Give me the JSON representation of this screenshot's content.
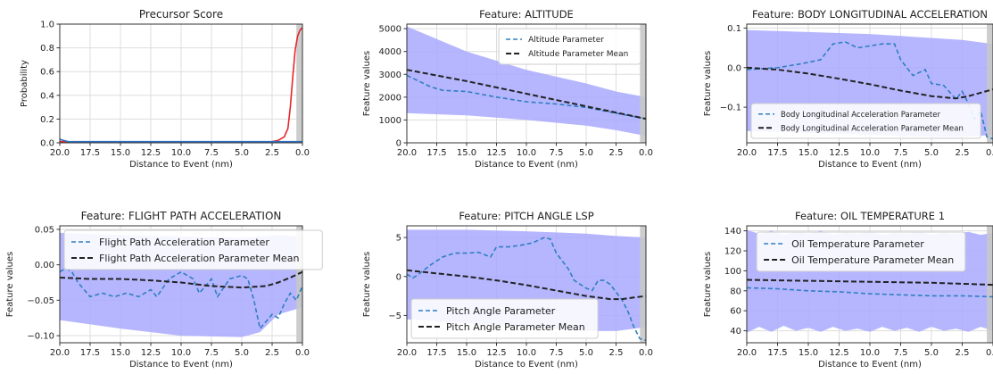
{
  "figure": {
    "xlabel": "Distance to Event (nm)",
    "x_ticks": [
      20.0,
      17.5,
      15.0,
      12.5,
      10.0,
      7.5,
      5.0,
      2.5,
      0.0
    ],
    "x_tick_labels": [
      "20.0",
      "17.5",
      "15.0",
      "12.5",
      "10.0",
      "7.5",
      "5.0",
      "2.5",
      "0.0"
    ],
    "colors": {
      "band": "#a9a9ff",
      "parameter": "#2f7fbf",
      "mean": "#222222",
      "precursor_red": "#e8262a",
      "precursor_blue": "#2f6fbf",
      "shade": "#c8c8c8",
      "grid": "#dddddd"
    }
  },
  "chart_data": [
    {
      "type": "line",
      "title": "Precursor Score",
      "xlabel": "Distance to Event (nm)",
      "ylabel": "Probability",
      "xlim": [
        20.0,
        0.0
      ],
      "ylim": [
        0,
        1.0
      ],
      "y_ticks": [
        0.0,
        0.2,
        0.4,
        0.6,
        0.8,
        1.0
      ],
      "y_tick_labels": [
        "0.0",
        "0.2",
        "0.4",
        "0.6",
        "0.8",
        "1.0"
      ],
      "shaded_x": [
        0.5,
        0.0
      ],
      "grid": true,
      "series": [
        {
          "color": "red",
          "style": "solid",
          "x": [
            20.0,
            15.0,
            10.0,
            5.0,
            3.0,
            2.5,
            2.0,
            1.5,
            1.2,
            1.0,
            0.8,
            0.6,
            0.4,
            0.2,
            0.0
          ],
          "y": [
            0.01,
            0.0,
            0.0,
            0.0,
            0.0,
            0.01,
            0.02,
            0.05,
            0.12,
            0.3,
            0.55,
            0.78,
            0.9,
            0.95,
            0.97
          ]
        },
        {
          "color": "blue",
          "style": "solid",
          "x": [
            20.0,
            19.7,
            19.3,
            15.0,
            10.0,
            5.0,
            2.0,
            0.0
          ],
          "y": [
            0.03,
            0.02,
            0.01,
            0.01,
            0.01,
            0.01,
            0.01,
            0.01
          ]
        }
      ]
    },
    {
      "type": "line",
      "title": "Feature: ALTITUDE",
      "xlabel": "Distance to Event (nm)",
      "ylabel": "Feature values",
      "xlim": [
        20.0,
        0.0
      ],
      "ylim": [
        0,
        5200
      ],
      "y_ticks": [
        0,
        1000,
        2000,
        3000,
        4000,
        5000
      ],
      "y_tick_labels": [
        "0",
        "1000",
        "2000",
        "3000",
        "4000",
        "5000"
      ],
      "shaded_x": [
        0.5,
        0.0
      ],
      "grid": true,
      "legend_position": "upper right",
      "band": {
        "x": [
          20.0,
          15.0,
          10.0,
          5.0,
          2.5,
          0.0
        ],
        "upper": [
          5100,
          4000,
          3200,
          2600,
          2250,
          2000
        ],
        "lower": [
          1300,
          1200,
          1000,
          750,
          550,
          300
        ]
      },
      "series": [
        {
          "name": "Altitude Parameter",
          "color": "parameter",
          "style": "dashed",
          "x": [
            20.0,
            19.0,
            18.0,
            17.0,
            15.0,
            12.5,
            10.0,
            7.5,
            5.0,
            2.5,
            0.0
          ],
          "y": [
            2950,
            2700,
            2450,
            2300,
            2250,
            2000,
            1800,
            1700,
            1550,
            1300,
            1050
          ]
        },
        {
          "name": "Altitude Parameter Mean",
          "color": "mean",
          "style": "dashed",
          "x": [
            20.0,
            15.0,
            10.0,
            5.0,
            0.0
          ],
          "y": [
            3200,
            2700,
            2150,
            1600,
            1050
          ]
        }
      ]
    },
    {
      "type": "line",
      "title": "Feature: BODY LONGITUDINAL ACCELERATION",
      "xlabel": "Distance to Event (nm)",
      "ylabel": "Feature values",
      "xlim": [
        20.0,
        0.0
      ],
      "ylim": [
        -0.19,
        0.11
      ],
      "y_ticks": [
        -0.1,
        0.0,
        0.1
      ],
      "y_tick_labels": [
        "−0.1",
        "0.0",
        "0.1"
      ],
      "shaded_x": [
        0.5,
        0.0
      ],
      "grid": true,
      "legend_position": "lower left",
      "band": {
        "x": [
          20.0,
          15.0,
          10.0,
          5.0,
          2.5,
          0.0
        ],
        "upper": [
          0.095,
          0.09,
          0.085,
          0.075,
          0.07,
          0.06
        ],
        "lower": [
          -0.16,
          -0.165,
          -0.17,
          -0.175,
          -0.175,
          -0.17
        ]
      },
      "series": [
        {
          "name": "Body Longitudinal Acceleration Parameter",
          "color": "parameter",
          "style": "dashed",
          "x": [
            20.0,
            17.5,
            15.5,
            14.0,
            13.0,
            12.0,
            11.0,
            10.0,
            9.0,
            8.0,
            7.5,
            6.5,
            5.5,
            5.0,
            4.0,
            3.0,
            2.5,
            2.0,
            1.5,
            1.0,
            0.5,
            0.0
          ],
          "y": [
            -0.005,
            0.0,
            0.01,
            0.02,
            0.06,
            0.065,
            0.05,
            0.055,
            0.06,
            0.06,
            0.02,
            -0.02,
            -0.005,
            -0.04,
            -0.045,
            -0.08,
            -0.06,
            -0.09,
            -0.13,
            -0.11,
            -0.175,
            -0.18
          ]
        },
        {
          "name": "Body Longitudinal Acceleration Parameter Mean",
          "color": "mean",
          "style": "dashed",
          "x": [
            20.0,
            17.5,
            15.0,
            12.5,
            10.0,
            7.5,
            5.0,
            3.0,
            2.0,
            0.0
          ],
          "y": [
            0.0,
            -0.005,
            -0.015,
            -0.028,
            -0.042,
            -0.058,
            -0.072,
            -0.078,
            -0.072,
            -0.055
          ]
        }
      ]
    },
    {
      "type": "line",
      "title": "Feature: FLIGHT PATH ACCELERATION",
      "xlabel": "Distance to Event (nm)",
      "ylabel": "Feature values",
      "xlim": [
        20.0,
        0.0
      ],
      "ylim": [
        -0.11,
        0.055
      ],
      "y_ticks": [
        -0.1,
        -0.05,
        0.0,
        0.05
      ],
      "y_tick_labels": [
        "−0.10",
        "−0.05",
        "0.00",
        "0.05"
      ],
      "shaded_x": [
        0.5,
        0.0
      ],
      "grid": true,
      "legend_position": "upper left",
      "band": {
        "x": [
          20.0,
          15.0,
          10.0,
          5.0,
          3.5,
          2.0,
          0.0
        ],
        "upper": [
          0.045,
          0.042,
          0.04,
          0.038,
          0.04,
          0.042,
          0.04
        ],
        "lower": [
          -0.078,
          -0.09,
          -0.1,
          -0.102,
          -0.095,
          -0.07,
          -0.06
        ]
      },
      "series": [
        {
          "name": "Flight Path Acceleration Parameter",
          "color": "parameter",
          "style": "dashed",
          "x": [
            20.0,
            19.5,
            19.0,
            18.5,
            17.5,
            16.5,
            15.5,
            14.5,
            13.5,
            12.5,
            12.0,
            11.0,
            10.0,
            9.0,
            8.5,
            7.5,
            7.0,
            6.0,
            5.0,
            4.5,
            4.0,
            3.5,
            3.0,
            2.5,
            2.0,
            1.5,
            1.0,
            0.5,
            0.0
          ],
          "y": [
            -0.01,
            -0.005,
            -0.01,
            -0.025,
            -0.045,
            -0.04,
            -0.045,
            -0.04,
            -0.045,
            -0.035,
            -0.045,
            -0.02,
            -0.01,
            -0.02,
            -0.04,
            -0.02,
            -0.045,
            -0.02,
            -0.015,
            -0.02,
            -0.05,
            -0.09,
            -0.08,
            -0.07,
            -0.075,
            -0.055,
            -0.04,
            -0.05,
            -0.03
          ]
        },
        {
          "name": "Flight Path Acceleration Parameter Mean",
          "color": "mean",
          "style": "dashed",
          "x": [
            20.0,
            17.5,
            15.0,
            12.5,
            10.0,
            7.5,
            5.0,
            3.0,
            2.0,
            1.0,
            0.0
          ],
          "y": [
            -0.018,
            -0.02,
            -0.02,
            -0.022,
            -0.025,
            -0.03,
            -0.032,
            -0.03,
            -0.025,
            -0.018,
            -0.01
          ]
        }
      ]
    },
    {
      "type": "line",
      "title": "Feature: PITCH ANGLE LSP",
      "xlabel": "Distance to Event (nm)",
      "ylabel": "Feature values",
      "xlim": [
        20.0,
        0.0
      ],
      "ylim": [
        -8.5,
        6.5
      ],
      "y_ticks": [
        -5,
        0,
        5
      ],
      "y_tick_labels": [
        "−5",
        "0",
        "5"
      ],
      "shaded_x": [
        0.5,
        0.0
      ],
      "grid": true,
      "legend_position": "lower left",
      "band": {
        "x": [
          20.0,
          15.0,
          10.0,
          5.0,
          2.5,
          0.0
        ],
        "upper": [
          6.0,
          6.0,
          5.8,
          5.5,
          5.2,
          5.0
        ],
        "lower": [
          -5.5,
          -6.0,
          -6.5,
          -7.0,
          -7.0,
          -6.5
        ]
      },
      "series": [
        {
          "name": "Pitch Angle Parameter",
          "color": "parameter",
          "style": "dashed",
          "x": [
            20.0,
            19.5,
            19.0,
            18.0,
            17.0,
            16.0,
            15.0,
            14.0,
            13.0,
            12.5,
            11.5,
            10.5,
            9.5,
            8.5,
            8.0,
            7.5,
            7.0,
            6.5,
            6.0,
            5.0,
            4.5,
            4.0,
            3.5,
            3.0,
            2.5,
            2.0,
            1.5,
            1.0,
            0.5,
            0.0
          ],
          "y": [
            0.3,
            -0.2,
            0.3,
            1.5,
            2.5,
            3.0,
            3.0,
            3.1,
            2.5,
            3.8,
            3.8,
            4.0,
            4.3,
            5.0,
            4.8,
            3.0,
            2.0,
            1.0,
            -0.5,
            -1.5,
            -1.8,
            -0.5,
            -0.5,
            -1.0,
            -2.0,
            -3.0,
            -4.5,
            -6.5,
            -8.0,
            -8.2
          ]
        },
        {
          "name": "Pitch Angle Parameter Mean",
          "color": "mean",
          "style": "dashed",
          "x": [
            20.0,
            17.5,
            15.0,
            12.5,
            10.0,
            7.5,
            5.0,
            3.0,
            2.0,
            1.0,
            0.0
          ],
          "y": [
            0.8,
            0.4,
            0.0,
            -0.5,
            -1.1,
            -1.8,
            -2.5,
            -2.9,
            -2.9,
            -2.7,
            -2.5
          ]
        }
      ]
    },
    {
      "type": "line",
      "title": "Feature: OIL TEMPERATURE 1",
      "xlabel": "Distance to Event (nm)",
      "ylabel": "Feature values",
      "xlim": [
        20.0,
        0.0
      ],
      "ylim": [
        28,
        145
      ],
      "y_ticks": [
        40,
        60,
        80,
        100,
        120,
        140
      ],
      "y_tick_labels": [
        "40",
        "60",
        "80",
        "100",
        "120",
        "140"
      ],
      "shaded_x": [
        0.5,
        0.0
      ],
      "grid": true,
      "legend_position": "upper center",
      "band": {
        "x": [
          20.0,
          19.0,
          18.0,
          17.0,
          16.0,
          15.0,
          14.0,
          13.0,
          12.0,
          11.0,
          10.0,
          9.0,
          8.0,
          7.0,
          6.0,
          5.0,
          4.0,
          3.0,
          2.0,
          1.0,
          0.0
        ],
        "upper": [
          141,
          137,
          140,
          136,
          139,
          137,
          140,
          136,
          138,
          137,
          139,
          136,
          138,
          137,
          139,
          136,
          138,
          137,
          139,
          136,
          138
        ],
        "lower": [
          38,
          44,
          39,
          45,
          40,
          43,
          39,
          44,
          40,
          42,
          39,
          44,
          40,
          43,
          39,
          44,
          40,
          42,
          39,
          44,
          40
        ]
      },
      "series": [
        {
          "name": "Oil Temperature Parameter",
          "color": "parameter",
          "style": "dashed",
          "x": [
            20.0,
            17.5,
            15.0,
            12.5,
            10.0,
            7.5,
            5.0,
            2.5,
            0.0
          ],
          "y": [
            83,
            82,
            80,
            79,
            77,
            76,
            75,
            75,
            74
          ]
        },
        {
          "name": "Oil Temperature Parameter Mean",
          "color": "mean",
          "style": "dashed",
          "x": [
            20.0,
            15.0,
            10.0,
            5.0,
            2.5,
            0.0
          ],
          "y": [
            91,
            90,
            89,
            88,
            87,
            86
          ]
        }
      ]
    }
  ]
}
